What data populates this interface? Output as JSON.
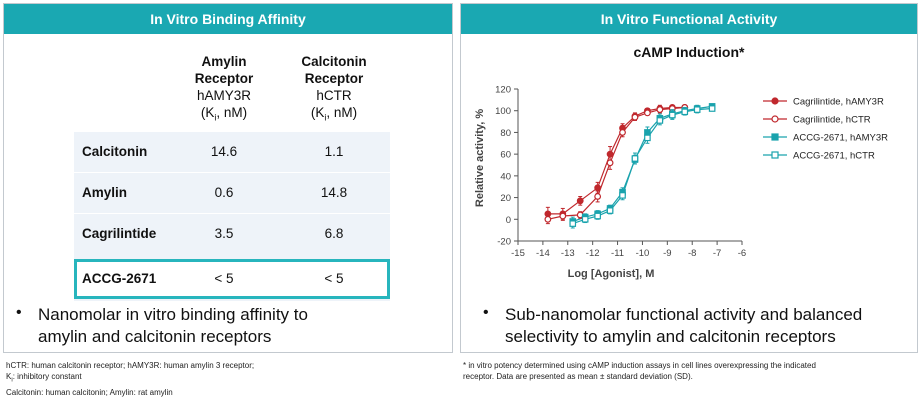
{
  "left_panel": {
    "header": "In Vitro Binding Affinity",
    "columns": [
      {
        "line1": "Amylin",
        "line2": "Receptor",
        "line3": "hAMY3R",
        "unit_pre": "(K",
        "unit_sub": "i",
        "unit_post": ", nM)"
      },
      {
        "line1": "Calcitonin",
        "line2": "Receptor",
        "line3": "hCTR",
        "unit_pre": "(K",
        "unit_sub": "i",
        "unit_post": ", nM)"
      }
    ],
    "rows": [
      {
        "name": "Calcitonin",
        "v1": "14.6",
        "v2": "1.1"
      },
      {
        "name": "Amylin",
        "v1": "0.6",
        "v2": "14.8"
      },
      {
        "name": "Cagrilintide",
        "v1": "3.5",
        "v2": "6.8"
      },
      {
        "name": "ACCG-2671",
        "v1": "< 5",
        "v2": "< 5"
      }
    ],
    "bullet_line1": "Nanomolar in vitro binding affinity to",
    "bullet_line2": "amylin and calcitonin receptors"
  },
  "right_panel": {
    "header": "In Vitro Functional Activity",
    "bullet_line1": "Sub-nanomolar functional activity and balanced",
    "bullet_line2": "selectivity to amylin and calcitonin receptors"
  },
  "footnotes_left": {
    "line1": "hCTR: human calcitonin receptor; hAMY3R: human amylin 3 receptor;",
    "line2_pre": "K",
    "line2_sub": "i",
    "line2_post": ": inhibitory constant",
    "line3": "Calcitonin: human calcitonin; Amylin: rat amylin"
  },
  "footnotes_right": {
    "line1": "* in vitro potency determined using cAMP induction assays in cell lines overexpressing the indicated",
    "line2": "receptor. Data are presented as mean ± standard deviation (SD)."
  },
  "chart_data": {
    "type": "line",
    "title": "cAMP Induction*",
    "xlabel": "Log [Agonist], M",
    "ylabel": "Relative activity, %",
    "xlim": [
      -15,
      -6
    ],
    "ylim": [
      -20,
      120
    ],
    "xticks": [
      -15,
      -14,
      -13,
      -12,
      -11,
      -10,
      -9,
      -8,
      -7,
      -6
    ],
    "yticks": [
      -20,
      0,
      20,
      40,
      60,
      80,
      100,
      120
    ],
    "series": [
      {
        "name": "Cagrilintide, hAMY3R",
        "color": "#c0282d",
        "marker": "circle",
        "filled": true,
        "x": [
          -13.8,
          -13.2,
          -12.5,
          -11.8,
          -11.3,
          -10.8,
          -10.3,
          -9.8,
          -9.3,
          -8.8,
          -8.3
        ],
        "y": [
          5,
          5,
          17,
          29,
          60,
          84,
          95,
          100,
          102,
          103,
          103
        ],
        "err": [
          6,
          5,
          4,
          5,
          7,
          4,
          3,
          2,
          3,
          2,
          2
        ]
      },
      {
        "name": "Cagrilintide, hCTR",
        "color": "#c0282d",
        "marker": "circle",
        "filled": false,
        "x": [
          -13.8,
          -13.2,
          -12.5,
          -11.8,
          -11.3,
          -10.8,
          -10.3,
          -9.8,
          -9.3,
          -8.8,
          -8.3
        ],
        "y": [
          0,
          3,
          4,
          21,
          52,
          80,
          94,
          98,
          101,
          102,
          103
        ],
        "err": [
          4,
          4,
          3,
          5,
          6,
          4,
          3,
          2,
          3,
          2,
          2
        ]
      },
      {
        "name": "ACCG-2671, hAMY3R",
        "color": "#1aa3ad",
        "marker": "square",
        "filled": true,
        "x": [
          -12.8,
          -12.3,
          -11.8,
          -11.3,
          -10.8,
          -10.3,
          -9.8,
          -9.3,
          -8.8,
          -8.3,
          -7.8,
          -7.2
        ],
        "y": [
          -2,
          2,
          5,
          10,
          25,
          55,
          80,
          93,
          97,
          100,
          102,
          104
        ],
        "err": [
          4,
          3,
          3,
          3,
          4,
          4,
          5,
          4,
          4,
          3,
          3,
          2
        ]
      },
      {
        "name": "ACCG-2671, hCTR",
        "color": "#1aa3ad",
        "marker": "square",
        "filled": false,
        "x": [
          -12.8,
          -12.3,
          -11.8,
          -11.3,
          -10.8,
          -10.3,
          -9.8,
          -9.3,
          -8.8,
          -8.3,
          -7.8,
          -7.2
        ],
        "y": [
          -4,
          0,
          3,
          8,
          22,
          56,
          75,
          91,
          96,
          99,
          101,
          102
        ],
        "err": [
          4,
          3,
          3,
          3,
          4,
          5,
          5,
          4,
          4,
          3,
          3,
          2
        ]
      }
    ],
    "legend_position": "right"
  }
}
